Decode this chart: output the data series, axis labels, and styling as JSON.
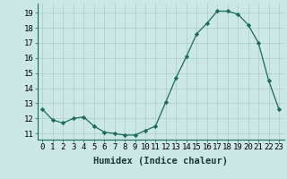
{
  "x": [
    0,
    1,
    2,
    3,
    4,
    5,
    6,
    7,
    8,
    9,
    10,
    11,
    12,
    13,
    14,
    15,
    16,
    17,
    18,
    19,
    20,
    21,
    22,
    23
  ],
  "y": [
    12.6,
    11.9,
    11.7,
    12.0,
    12.1,
    11.5,
    11.1,
    11.0,
    10.9,
    10.9,
    11.2,
    11.5,
    13.1,
    14.7,
    16.1,
    17.6,
    18.3,
    19.1,
    19.1,
    18.9,
    18.2,
    17.0,
    14.5,
    12.6
  ],
  "xlabel": "Humidex (Indice chaleur)",
  "ylim": [
    10.6,
    19.6
  ],
  "xlim": [
    -0.5,
    23.5
  ],
  "yticks": [
    11,
    12,
    13,
    14,
    15,
    16,
    17,
    18,
    19
  ],
  "xticks": [
    0,
    1,
    2,
    3,
    4,
    5,
    6,
    7,
    8,
    9,
    10,
    11,
    12,
    13,
    14,
    15,
    16,
    17,
    18,
    19,
    20,
    21,
    22,
    23
  ],
  "line_color": "#1a6b5a",
  "marker_color": "#1a6b5a",
  "bg_color": "#cce8e6",
  "grid_color": "#b0d0ce",
  "xlabel_fontsize": 7.5,
  "tick_fontsize": 6.5
}
